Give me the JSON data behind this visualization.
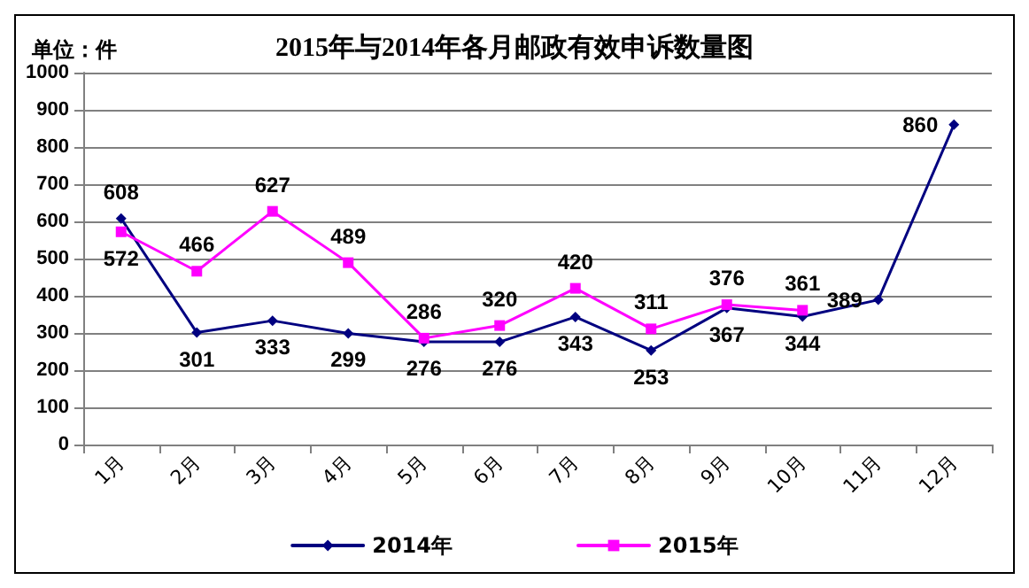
{
  "chart_data": {
    "type": "line",
    "title": "2015年与2014年各月邮政有效申诉数量图",
    "annotations": [
      "单位：件"
    ],
    "categories": [
      "1月",
      "2月",
      "3月",
      "4月",
      "5月",
      "6月",
      "7月",
      "8月",
      "9月",
      "10月",
      "11月",
      "12月"
    ],
    "series": [
      {
        "name": "2014年",
        "color": "#000080",
        "marker": "diamond",
        "values": [
          608,
          301,
          333,
          299,
          276,
          276,
          343,
          253,
          367,
          344,
          389,
          860
        ]
      },
      {
        "name": "2015年",
        "color": "#ff00ff",
        "marker": "square",
        "values": [
          572,
          466,
          627,
          489,
          286,
          320,
          420,
          311,
          376,
          361,
          null,
          null
        ]
      }
    ],
    "ylim": [
      0,
      1000
    ],
    "yticks": [
      0,
      100,
      200,
      300,
      400,
      500,
      600,
      700,
      800,
      900,
      1000
    ],
    "grid": "y",
    "legend": "bottom",
    "data_labels": true,
    "line_style": "solid"
  }
}
